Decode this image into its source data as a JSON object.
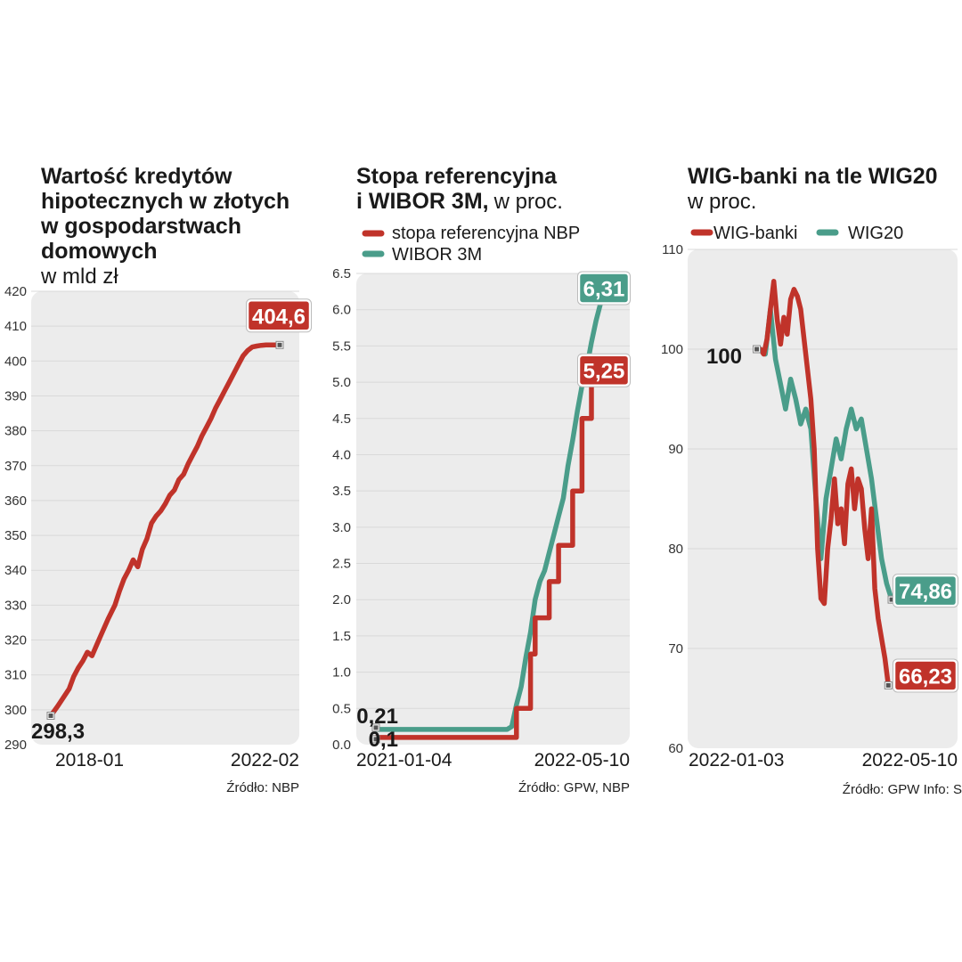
{
  "colors": {
    "red": "#c0332a",
    "green": "#4a9d8a",
    "panel": "#ececec",
    "grid": "#d9d9d9",
    "marker": "#555555"
  },
  "chart_data": [
    {
      "type": "line",
      "title_lines": [
        "Wartość kredytów",
        "hipotecznych w złotych",
        "w gospodarstwach",
        "domowych"
      ],
      "subtitle": "w mld zł",
      "ylim": [
        290,
        420
      ],
      "yticks": [
        "290",
        "300",
        "310",
        "320",
        "330",
        "340",
        "350",
        "360",
        "370",
        "380",
        "390",
        "400",
        "410",
        "420"
      ],
      "x_start_label": "2018-01",
      "x_end_label": "2022-02",
      "source": "Źródło: NBP",
      "series": [
        {
          "name": "kredyty hipoteczne",
          "color": "red",
          "start_label": "298,3",
          "end_label": "404,6",
          "x": [
            0,
            0.03,
            0.06,
            0.08,
            0.1,
            0.12,
            0.14,
            0.16,
            0.18,
            0.2,
            0.22,
            0.25,
            0.28,
            0.3,
            0.32,
            0.34,
            0.36,
            0.38,
            0.4,
            0.42,
            0.44,
            0.46,
            0.48,
            0.5,
            0.52,
            0.54,
            0.56,
            0.58,
            0.6,
            0.62,
            0.64,
            0.66,
            0.68,
            0.7,
            0.72,
            0.74,
            0.76,
            0.78,
            0.8,
            0.82,
            0.84,
            0.86,
            0.88,
            0.9,
            0.92,
            0.94,
            0.96,
            0.98,
            1.0
          ],
          "values": [
            298.3,
            301,
            304,
            306,
            309.5,
            312,
            314,
            316.5,
            315.5,
            318.5,
            321.5,
            326,
            330,
            334,
            337.5,
            340,
            343,
            341,
            346,
            349,
            353.5,
            355.5,
            357,
            359,
            361.5,
            363,
            366,
            367.5,
            370.5,
            373,
            375.5,
            378.5,
            381,
            383.5,
            386.5,
            389,
            391.5,
            394,
            396.5,
            399,
            401.5,
            403,
            404,
            404.3,
            404.5,
            404.6,
            404.6,
            404.6,
            404.6
          ]
        }
      ]
    },
    {
      "type": "line",
      "title_lines": [
        "Stopa referencyjna",
        "i WIBOR 3M,"
      ],
      "title_suffix": "w proc.",
      "ylim": [
        0,
        6.5
      ],
      "yticks": [
        "0.0",
        "0.5",
        "1.0",
        "1.5",
        "2.0",
        "2.5",
        "3.0",
        "3.5",
        "4.0",
        "4.5",
        "5.0",
        "5.5",
        "6.0",
        "6.5"
      ],
      "x_start_label": "2021-01-04",
      "x_end_label": "2022-05-10",
      "source": "Źródło: GPW, NBP",
      "series": [
        {
          "name": "stopa referencyjna NBP",
          "color": "red",
          "start_label": "0,1",
          "end_label": "5,25",
          "x": [
            0,
            0.6,
            0.6,
            0.66,
            0.66,
            0.68,
            0.68,
            0.74,
            0.74,
            0.78,
            0.78,
            0.84,
            0.84,
            0.88,
            0.88,
            0.92,
            0.92,
            0.96,
            0.96,
            1.0
          ],
          "values": [
            0.1,
            0.1,
            0.5,
            0.5,
            1.25,
            1.25,
            1.75,
            1.75,
            2.25,
            2.25,
            2.75,
            2.75,
            3.5,
            3.5,
            4.5,
            4.5,
            5.25,
            5.25,
            5.25,
            5.25
          ]
        },
        {
          "name": "WIBOR 3M",
          "color": "green",
          "start_label": "0,21",
          "end_label": "6,31",
          "x": [
            0,
            0.56,
            0.58,
            0.6,
            0.62,
            0.64,
            0.66,
            0.68,
            0.7,
            0.72,
            0.74,
            0.76,
            0.78,
            0.8,
            0.82,
            0.84,
            0.86,
            0.88,
            0.9,
            0.92,
            0.94,
            0.96,
            0.98,
            1.0
          ],
          "values": [
            0.21,
            0.21,
            0.25,
            0.55,
            0.8,
            1.2,
            1.55,
            2.0,
            2.25,
            2.4,
            2.65,
            2.9,
            3.15,
            3.4,
            3.85,
            4.2,
            4.6,
            4.95,
            5.2,
            5.55,
            5.85,
            6.1,
            6.25,
            6.31
          ]
        }
      ]
    },
    {
      "type": "line",
      "title_lines": [
        "WIG-banki na tle WIG20"
      ],
      "subtitle": "w proc.",
      "ylim": [
        60,
        110
      ],
      "yticks": [
        "60",
        "70",
        "80",
        "90",
        "100",
        "110"
      ],
      "x_start_label": "2022-01-03",
      "x_end_label": "2022-05-10",
      "source": "Źródło: GPW  Info: S",
      "start_label": "100",
      "series": [
        {
          "name": "WIG-banki",
          "color": "red",
          "end_label": "66,23",
          "x": [
            0,
            0.02,
            0.04,
            0.06,
            0.08,
            0.1,
            0.12,
            0.14,
            0.16,
            0.18,
            0.2,
            0.22,
            0.24,
            0.26,
            0.28,
            0.3,
            0.32,
            0.34,
            0.36,
            0.38,
            0.4,
            0.42,
            0.44,
            0.46,
            0.48,
            0.5,
            0.52,
            0.54,
            0.56,
            0.58,
            0.6,
            0.62,
            0.64,
            0.66,
            0.68,
            0.7,
            0.72,
            0.74,
            0.76,
            0.78,
            0.8,
            0.82,
            0.84,
            0.86,
            0.88,
            0.9,
            0.92,
            0.94,
            0.96,
            0.98,
            1.0
          ],
          "values": [
            100,
            99.5,
            101,
            104,
            106.8,
            103,
            100.5,
            103.2,
            101.5,
            105,
            106,
            105.3,
            104,
            101,
            98,
            95,
            90,
            80,
            75,
            74.5,
            80,
            83,
            87,
            82.5,
            84,
            80.5,
            86.5,
            88,
            84,
            87,
            86,
            82,
            79,
            84,
            76,
            73,
            71,
            69,
            66.3,
            66.3,
            66.2,
            66.2,
            66.2,
            66.2,
            66.2,
            66.2,
            66.2,
            66.2,
            66.2,
            66.2,
            66.23
          ]
        },
        {
          "name": "WIG20",
          "color": "green",
          "end_label": "74,86",
          "x": [
            0,
            0.03,
            0.06,
            0.09,
            0.12,
            0.15,
            0.18,
            0.21,
            0.24,
            0.27,
            0.3,
            0.33,
            0.36,
            0.39,
            0.42,
            0.45,
            0.48,
            0.51,
            0.54,
            0.57,
            0.6,
            0.63,
            0.66,
            0.69,
            0.72,
            0.75,
            0.78,
            0.81,
            0.84,
            0.87,
            0.9,
            0.93,
            0.96,
            1.0
          ],
          "values": [
            100,
            99.5,
            104,
            99,
            96.5,
            94,
            97,
            95,
            92.5,
            94,
            92,
            85,
            79,
            85,
            88,
            91,
            89,
            92,
            94,
            92,
            93,
            90,
            87,
            83,
            79,
            76.5,
            74.9,
            74.9,
            74.9,
            74.9,
            74.9,
            74.9,
            74.9,
            74.86
          ]
        }
      ]
    }
  ],
  "legend2": [
    {
      "label": "stopa referencyjna NBP",
      "color": "red"
    },
    {
      "label": "WIBOR 3M",
      "color": "green"
    }
  ],
  "legend3": [
    {
      "label": "WIG-banki",
      "color": "red"
    },
    {
      "label": "WIG20",
      "color": "green"
    }
  ]
}
